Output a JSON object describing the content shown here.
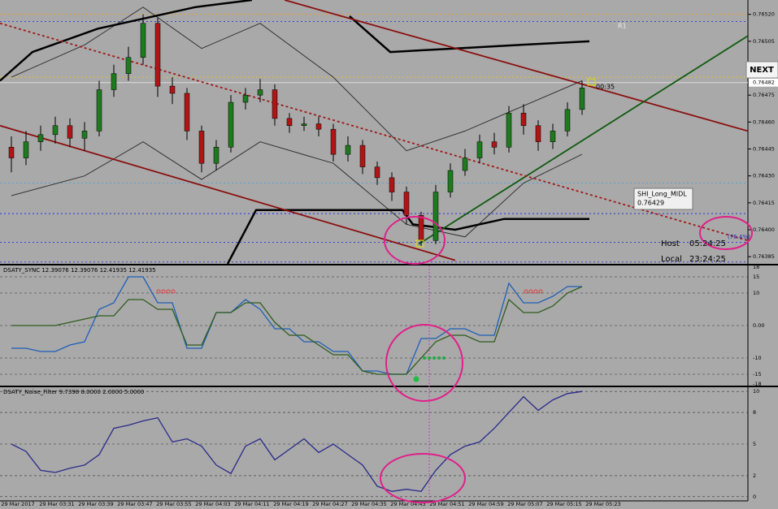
{
  "main_chart": {
    "type": "candlestick",
    "ylim": [
      0.76381,
      0.76528
    ],
    "yticks": [
      {
        "value": 0.7652,
        "label": "0.76520"
      },
      {
        "value": 0.76505,
        "label": "0.76505"
      },
      {
        "value": 0.76475,
        "label": "0.76475"
      },
      {
        "value": 0.7646,
        "label": "0.76460"
      },
      {
        "value": 0.76445,
        "label": "0.76445"
      },
      {
        "value": 0.7643,
        "label": "0.76430"
      },
      {
        "value": 0.76415,
        "label": "0.76415"
      },
      {
        "value": 0.764,
        "label": "0.76400"
      },
      {
        "value": 0.76385,
        "label": "0.76385"
      }
    ],
    "current_price": {
      "value": 0.76482,
      "label": "0.76482"
    },
    "candles": {
      "open": [
        0.76446,
        0.7644,
        0.76449,
        0.76453,
        0.76458,
        0.76451,
        0.76455,
        0.76478,
        0.76487,
        0.76496,
        0.76515,
        0.7648,
        0.76476,
        0.76455,
        0.76437,
        0.76446,
        0.76471,
        0.76475,
        0.76478,
        0.76462,
        0.76458,
        0.76459,
        0.76456,
        0.76442,
        0.76447,
        0.76435,
        0.76429,
        0.76421,
        0.76408,
        0.76394,
        0.76421,
        0.76433,
        0.7644,
        0.76449,
        0.76446,
        0.76465,
        0.76458,
        0.76449,
        0.76455,
        0.76467
      ],
      "high": [
        0.76452,
        0.76455,
        0.76458,
        0.76463,
        0.76462,
        0.7646,
        0.76483,
        0.76492,
        0.76502,
        0.7652,
        0.76518,
        0.76485,
        0.76479,
        0.76458,
        0.7645,
        0.76475,
        0.76479,
        0.76484,
        0.76481,
        0.76465,
        0.76463,
        0.76463,
        0.76459,
        0.76452,
        0.7645,
        0.76438,
        0.76432,
        0.76424,
        0.7641,
        0.76425,
        0.76437,
        0.76445,
        0.76453,
        0.76454,
        0.76469,
        0.7647,
        0.76461,
        0.76459,
        0.76471,
        0.76483
      ],
      "low": [
        0.76432,
        0.76436,
        0.76444,
        0.76448,
        0.76446,
        0.76444,
        0.76452,
        0.76474,
        0.76483,
        0.76492,
        0.76474,
        0.7647,
        0.7645,
        0.76432,
        0.76433,
        0.76443,
        0.76467,
        0.76471,
        0.76458,
        0.76454,
        0.76455,
        0.76452,
        0.76438,
        0.76438,
        0.76431,
        0.76425,
        0.76416,
        0.76403,
        0.76391,
        0.76392,
        0.76418,
        0.7643,
        0.76437,
        0.76442,
        0.76443,
        0.76453,
        0.76444,
        0.76445,
        0.76452,
        0.76464
      ],
      "close": [
        0.7644,
        0.76449,
        0.76453,
        0.76458,
        0.76451,
        0.76455,
        0.76478,
        0.76487,
        0.76496,
        0.76515,
        0.7648,
        0.76476,
        0.76455,
        0.76437,
        0.76446,
        0.76471,
        0.76475,
        0.76478,
        0.76462,
        0.76458,
        0.76459,
        0.76456,
        0.76442,
        0.76447,
        0.76435,
        0.76429,
        0.76421,
        0.76408,
        0.76394,
        0.76421,
        0.76433,
        0.7644,
        0.76449,
        0.76446,
        0.76465,
        0.76458,
        0.76449,
        0.76455,
        0.76467,
        0.76479
      ],
      "up_color": "#1f7a1f",
      "down_color": "#b01515"
    },
    "bands": [
      {
        "color": "#333333",
        "x": [
          0,
          5,
          9,
          13,
          17,
          22,
          27,
          31,
          35,
          39
        ],
        "values": [
          0.76485,
          0.76503,
          0.76524,
          0.76501,
          0.76515,
          0.76485,
          0.76444,
          0.76455,
          0.76469,
          0.76483
        ]
      },
      {
        "color": "#333333",
        "x": [
          0,
          5,
          9,
          13,
          17,
          22,
          27,
          31,
          35,
          39
        ],
        "values": [
          0.76419,
          0.7643,
          0.76449,
          0.76428,
          0.76449,
          0.76437,
          0.76403,
          0.76396,
          0.76426,
          0.76442
        ]
      }
    ],
    "channels": [
      {
        "color": "#000000",
        "x": [
          -0.78,
          1.44,
          5.89,
          12.56,
          16.44,
          null,
          23.11,
          25.89,
          30.33,
          34.78,
          39.5
        ],
        "values": [
          0.76483,
          0.76499,
          0.76512,
          0.76524,
          0.76528,
          null,
          0.76519,
          0.76499,
          0.76501,
          0.76503,
          0.76505
        ]
      },
      {
        "color": "#000000",
        "x": [
          14.78,
          16.72,
          26.72,
          27.44,
          30.33,
          33.67,
          39.5
        ],
        "values": [
          0.76381,
          0.76411,
          0.76411,
          0.76403,
          0.764,
          0.76406,
          0.76406
        ]
      }
    ],
    "trendlines": [
      {
        "color": "#8b1010",
        "x": [
          18.67,
          50.33
        ],
        "values": [
          0.76528,
          0.76455
        ]
      },
      {
        "color": "#8b1010",
        "x": [
          -0.78,
          30.33
        ],
        "values": [
          0.76458,
          0.76383
        ]
      },
      {
        "color": "#0f5a0f",
        "x": [
          27.83,
          50.33
        ],
        "values": [
          0.76392,
          0.76508
        ]
      },
      {
        "color": "#a01818",
        "x": [
          -0.78,
          50.33
        ],
        "values": [
          0.76515,
          0.76394
        ],
        "dashed": true
      }
    ],
    "levels": [
      {
        "value": 0.7652,
        "color": "#e89a2a"
      },
      {
        "value": 0.76516,
        "color": "#3344cc"
      },
      {
        "value": 0.76485,
        "color": "#e8c02a"
      },
      {
        "value": 0.76426,
        "color": "#5aa0d0"
      },
      {
        "value": 0.76409,
        "color": "#2233dd"
      },
      {
        "value": 0.76393,
        "color": "#3344cc"
      },
      {
        "value": 0.76382,
        "color": "#3344cc"
      }
    ],
    "time_labels": [
      "29 Mar 2017",
      "29 Mar 03:31",
      "29 Mar 03:39",
      "29 Mar 03:47",
      "29 Mar 03:55",
      "29 Mar 04:03",
      "29 Mar 04:11",
      "29 Mar 04:19",
      "29 Mar 04:27",
      "29 Mar 04:35",
      "29 Mar 04:43",
      "29 Mar 04:51",
      "29 Mar 04:59",
      "29 Mar 05:07",
      "29 Mar 05:15",
      "29 Mar 05:23"
    ],
    "r1_label": "R1",
    "next_button": "NEXT",
    "countdown": "00:35",
    "shi_name": "SHI_Long_MIDL",
    "shi_value": "0.76429",
    "fib_label": "(76.4%)",
    "host_label": "Host",
    "host_time": "05:24:25",
    "local_label": "Local",
    "local_time": "23:24:25"
  },
  "sync_panel": {
    "type": "line",
    "header": "DSATY_SYNC 12.39076 12.39076 12.41935 12.41935",
    "ylim": [
      -18.5,
      18.5
    ],
    "yticks": [
      18,
      15,
      10,
      {
        "value": 0,
        "label": "0.00"
      },
      -10,
      -15,
      -18
    ],
    "series": [
      {
        "color": "#1f5fb8",
        "values": [
          -7,
          -7,
          -8,
          -8,
          -6,
          -5,
          5,
          7,
          15,
          15,
          7,
          7,
          -7,
          -7,
          4,
          4,
          8,
          5,
          -1,
          -1,
          -5,
          -5,
          -8,
          -8,
          -14,
          -14,
          -15,
          -15,
          -4,
          -4,
          -1,
          -1,
          -3,
          -3,
          13,
          7,
          7,
          9,
          12,
          12
        ]
      },
      {
        "color": "#2f5d1e",
        "values": [
          0,
          0,
          0,
          0,
          1,
          2,
          3,
          3,
          8,
          8,
          5,
          5,
          -6,
          -6,
          4,
          4,
          7,
          7,
          1,
          -3,
          -3,
          -6,
          -9,
          -9,
          -14,
          -15,
          -15,
          -15,
          -10,
          -5,
          -3,
          -3,
          -5,
          -5,
          8,
          4,
          4,
          6,
          10,
          12
        ]
      }
    ]
  },
  "noise_panel": {
    "type": "line",
    "header": "DSATY_Noise_Filter 9.7398 8.0000 2.0000 5.0000",
    "ylim": [
      -0.4,
      10.4
    ],
    "yticks": [
      10,
      8,
      5,
      2,
      0
    ],
    "series": [
      {
        "color": "#2a2a8a",
        "values": [
          5,
          4.3,
          2.5,
          2.3,
          2.7,
          3,
          4,
          6.5,
          6.8,
          7.2,
          7.5,
          5.2,
          5.5,
          4.8,
          3,
          2.2,
          4.8,
          5.5,
          3.5,
          4.5,
          5.5,
          4.2,
          5,
          4,
          3,
          1,
          0.5,
          0.7,
          0.5,
          2.5,
          4,
          4.8,
          5.2,
          6.5,
          8,
          9.5,
          8.2,
          9.2,
          9.8,
          10
        ]
      }
    ]
  }
}
